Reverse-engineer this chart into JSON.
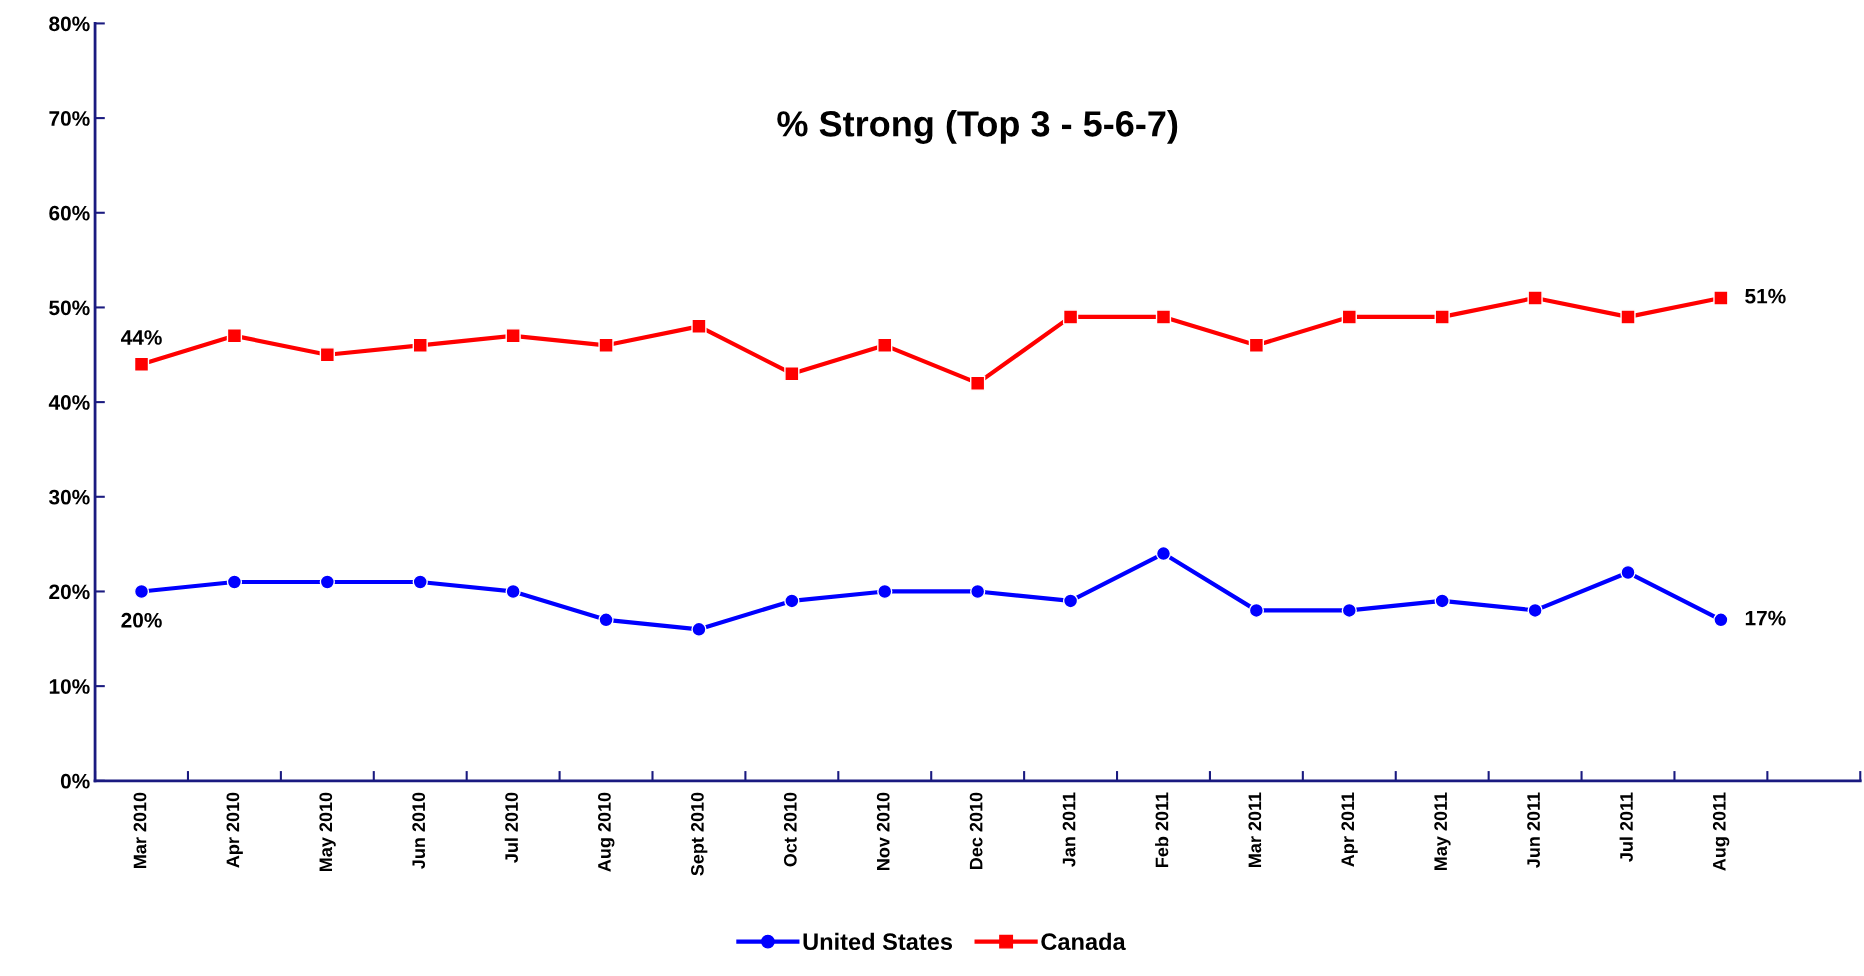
{
  "chart_data": {
    "type": "line",
    "title": "% Strong (Top 3 - 5-6-7)",
    "categories": [
      "Mar 2010",
      "Apr 2010",
      "May 2010",
      "Jun 2010",
      "Jul 2010",
      "Aug 2010",
      "Sept 2010",
      "Oct 2010",
      "Nov 2010",
      "Dec 2010",
      "Jan 2011",
      "Feb 2011",
      "Mar 2011",
      "Apr 2011",
      "May 2011",
      "Jun 2011",
      "Jul 2011",
      "Aug 2011",
      null
    ],
    "series": [
      {
        "name": "United States",
        "color": "#0000ff",
        "marker": "circle",
        "values": [
          20,
          21,
          21,
          21,
          20,
          17,
          16,
          19,
          20,
          20,
          19,
          24,
          18,
          18,
          19,
          18,
          22,
          17,
          null
        ],
        "value_labels": [
          "20%",
          null,
          null,
          null,
          null,
          null,
          null,
          null,
          null,
          null,
          null,
          null,
          null,
          null,
          null,
          null,
          null,
          "17%",
          null
        ]
      },
      {
        "name": "Canada",
        "color": "#ff0000",
        "marker": "square",
        "values": [
          44,
          47,
          45,
          46,
          47,
          46,
          48,
          43,
          46,
          42,
          49,
          49,
          46,
          49,
          49,
          51,
          49,
          51,
          null
        ],
        "value_labels": [
          "44%",
          null,
          null,
          null,
          null,
          null,
          null,
          null,
          null,
          null,
          null,
          null,
          null,
          null,
          null,
          null,
          null,
          "51%",
          null
        ]
      }
    ],
    "ylim": [
      0,
      80
    ],
    "yticks": [
      {
        "value": 0,
        "label": "0%"
      },
      {
        "value": 10,
        "label": "10%"
      },
      {
        "value": 20,
        "label": "20%"
      },
      {
        "value": 30,
        "label": "30%"
      },
      {
        "value": 40,
        "label": "40%"
      },
      {
        "value": 50,
        "label": "50%"
      },
      {
        "value": 60,
        "label": "60%"
      },
      {
        "value": 70,
        "label": "70%"
      },
      {
        "value": 80,
        "label": "80%"
      }
    ],
    "grid": false,
    "legend": "bottom",
    "line_style": "solid"
  }
}
